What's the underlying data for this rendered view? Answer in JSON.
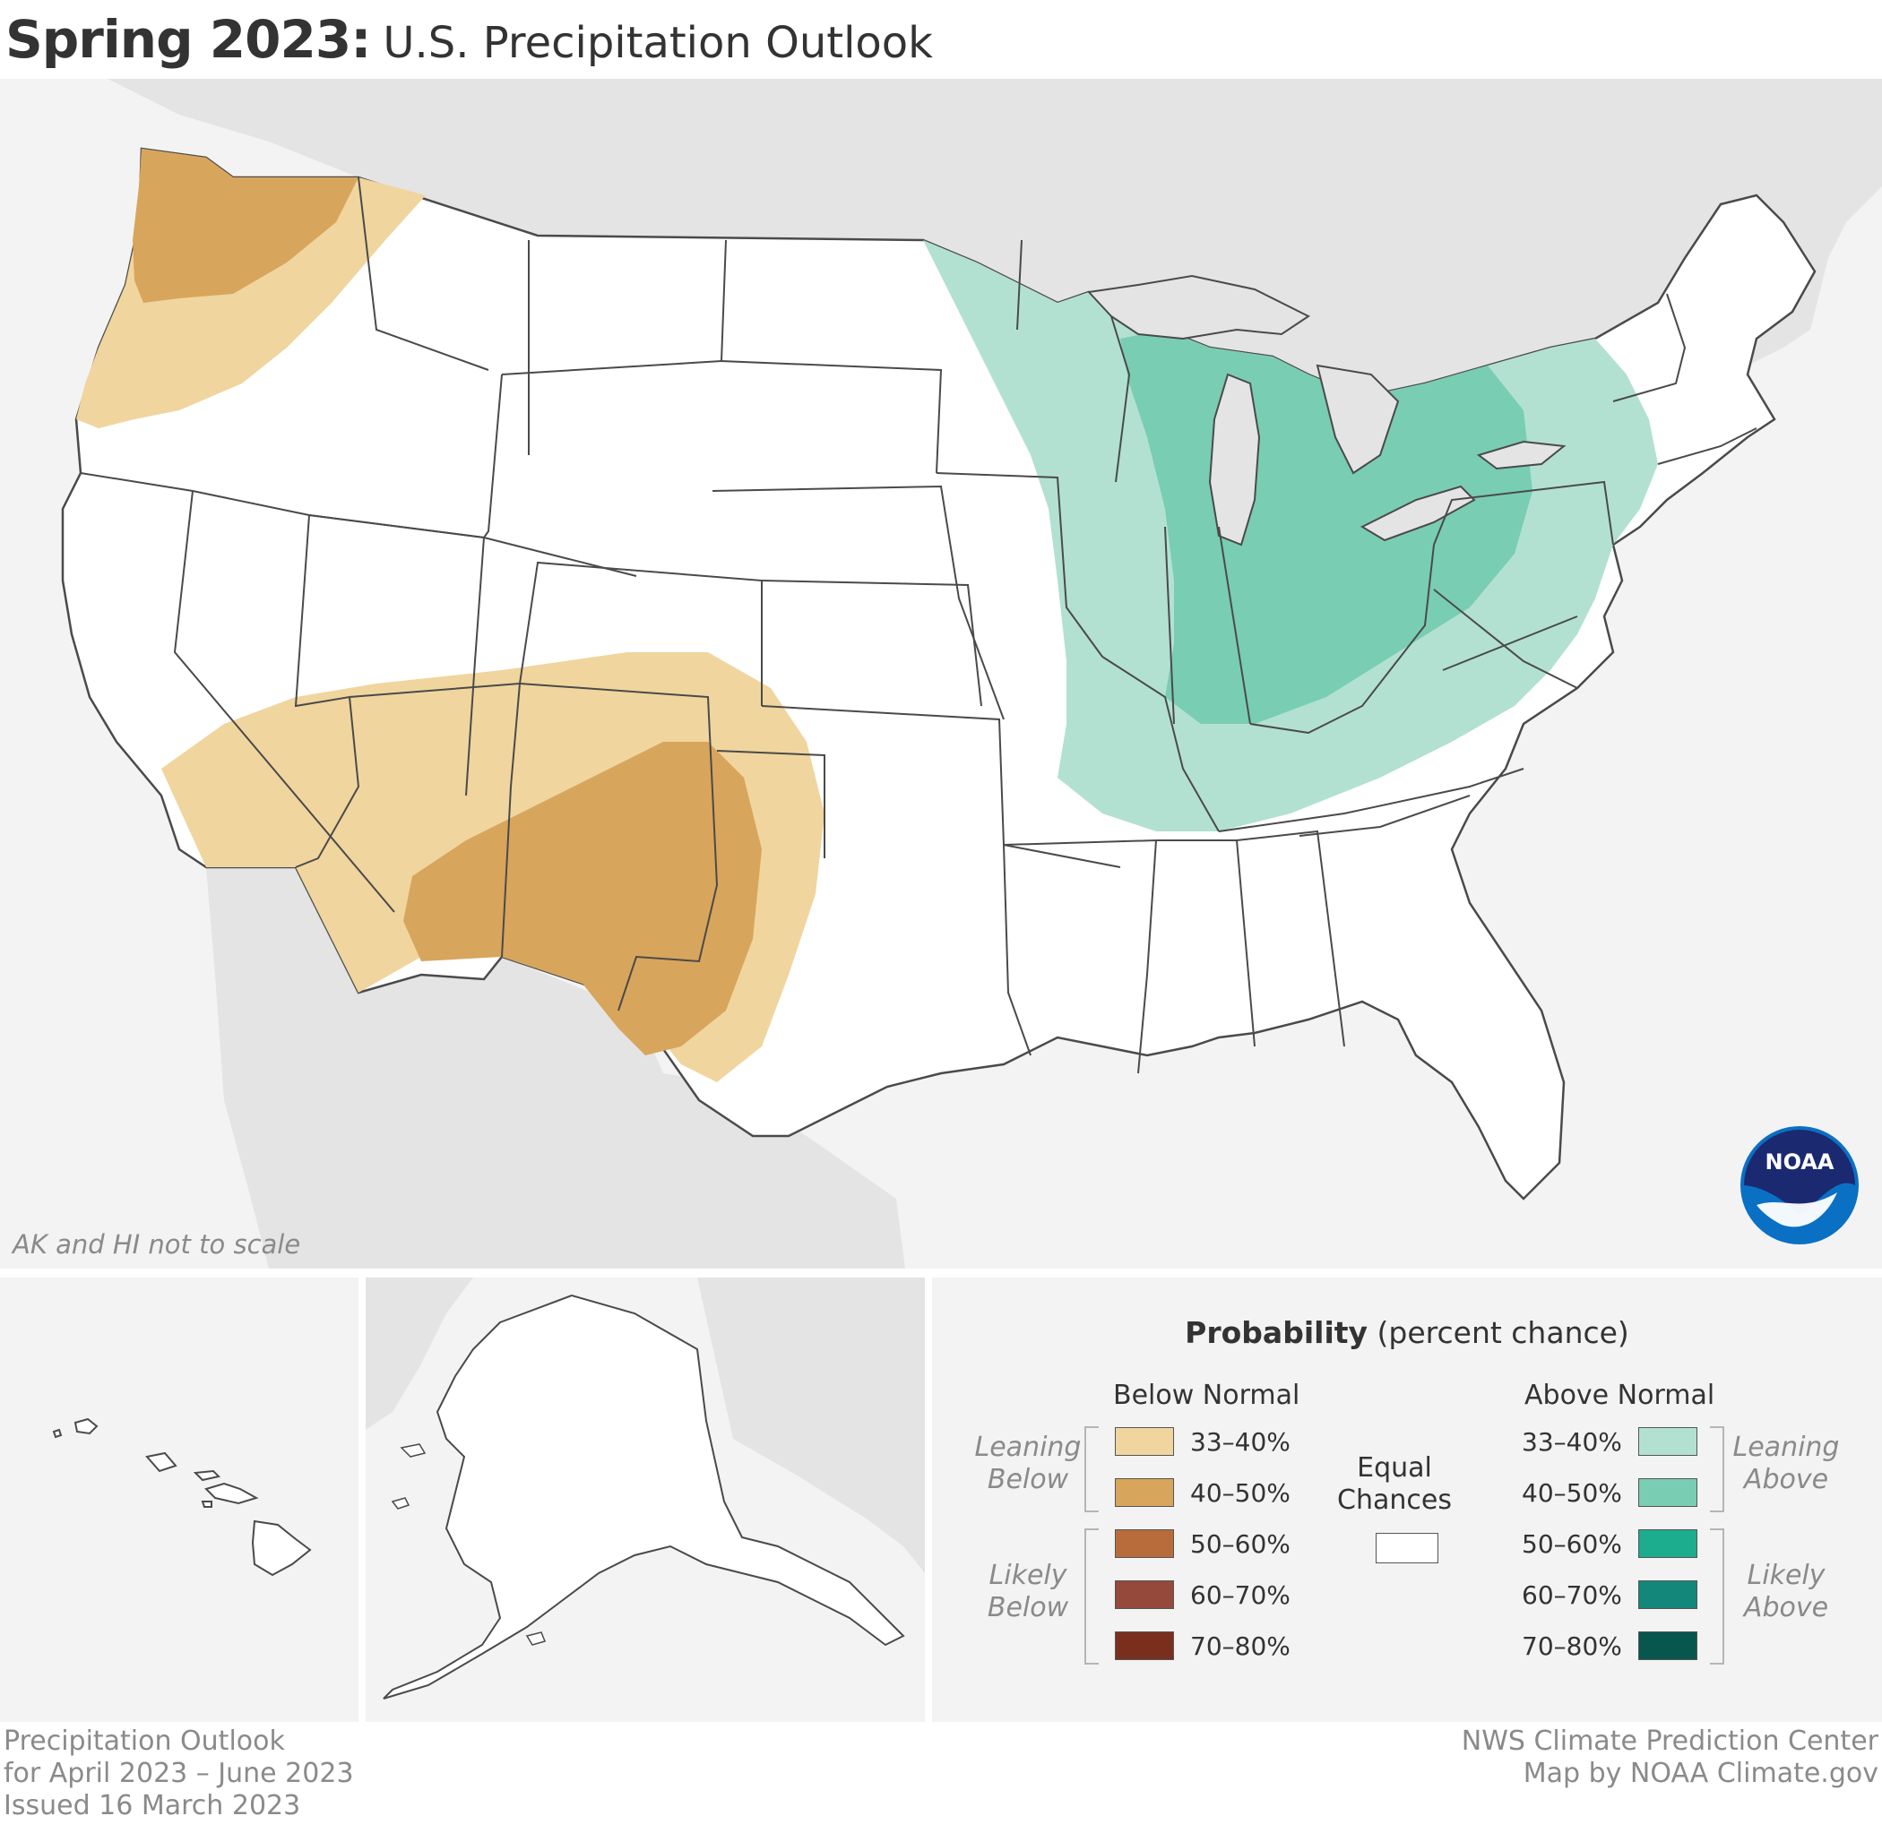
{
  "header": {
    "title_bold": "Spring 2023:",
    "title_rest": "U.S. Precipitation Outlook"
  },
  "map": {
    "scale_note": "AK and HI not to scale",
    "logo_text": "NOAA",
    "colors": {
      "background": "#f3f3f3",
      "land_other": "#e4e4e4",
      "equal_chances": "#ffffff",
      "borders": "#4a4a4a"
    },
    "regions": [
      {
        "name": "Pacific Northwest",
        "category": "below",
        "level": "40–50%"
      },
      {
        "name": "Northwest surrounding",
        "category": "below",
        "level": "33–40%"
      },
      {
        "name": "Southwest",
        "category": "below",
        "level": "33–40%"
      },
      {
        "name": "New Mexico / West Texas",
        "category": "below",
        "level": "40–50%"
      },
      {
        "name": "Ohio Valley / Great Lakes",
        "category": "above",
        "level": "40–50%"
      },
      {
        "name": "Midwest / Northeast",
        "category": "above",
        "level": "33–40%"
      }
    ]
  },
  "legend": {
    "title_bold": "Probability",
    "title_rest": " (percent chance)",
    "below_heading": "Below Normal",
    "above_heading": "Above Normal",
    "equal_line1": "Equal",
    "equal_line2": "Chances",
    "leaning_below": [
      "Leaning",
      "Below"
    ],
    "likely_below": [
      "Likely",
      "Below"
    ],
    "leaning_above": [
      "Leaning",
      "Above"
    ],
    "likely_above": [
      "Likely",
      "Above"
    ],
    "below": [
      {
        "label": "33–40%",
        "color": "#f0d59e"
      },
      {
        "label": "40–50%",
        "color": "#d8a55c"
      },
      {
        "label": "50–60%",
        "color": "#b86c3c"
      },
      {
        "label": "60–70%",
        "color": "#94493a"
      },
      {
        "label": "70–80%",
        "color": "#7a2f1e"
      }
    ],
    "above": [
      {
        "label": "33–40%",
        "color": "#b3e1d1"
      },
      {
        "label": "40–50%",
        "color": "#79cdb2"
      },
      {
        "label": "50–60%",
        "color": "#1cac8e"
      },
      {
        "label": "60–70%",
        "color": "#12877a"
      },
      {
        "label": "70–80%",
        "color": "#07574f"
      }
    ]
  },
  "footer": {
    "left": [
      "Precipitation Outlook",
      "for April 2023 – June 2023",
      "Issued 16 March 2023"
    ],
    "right": [
      "NWS Climate Prediction Center",
      "Map by NOAA Climate.gov"
    ]
  }
}
